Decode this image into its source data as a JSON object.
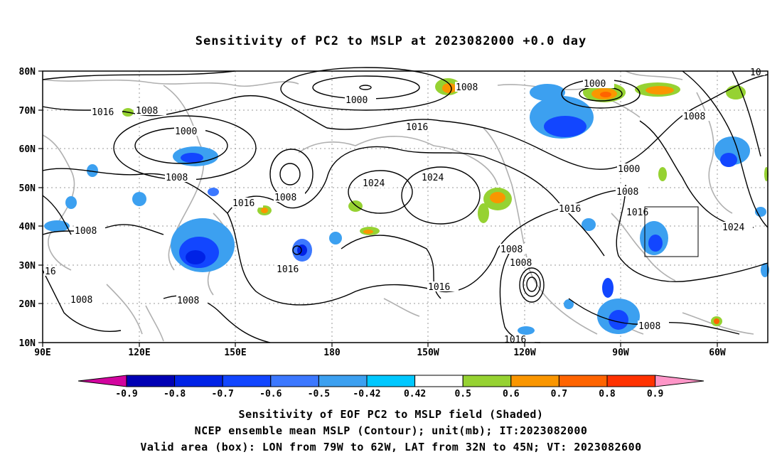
{
  "title": "Sensitivity of PC2 to MSLP at 2023082000 +0.0 day",
  "lat_ticks": [
    "80N",
    "70N",
    "60N",
    "50N",
    "40N",
    "30N",
    "20N",
    "10N"
  ],
  "lon_ticks": [
    "90E",
    "120E",
    "150E",
    "180",
    "150W",
    "120W",
    "90W",
    "60W"
  ],
  "contour_labels": [
    "1000",
    "1000",
    "1000",
    "1000",
    "1008",
    "1008",
    "1008",
    "1008",
    "1008",
    "1008",
    "1008",
    "1008",
    "1008",
    "1008",
    "1008",
    "1008",
    "1016",
    "1016",
    "1016",
    "1016",
    "1016",
    "1016",
    "1016",
    "1016",
    "1024",
    "1024",
    "1024",
    "16",
    "10"
  ],
  "colorbar": {
    "labels": [
      "-0.9",
      "-0.8",
      "-0.7",
      "-0.6",
      "-0.5",
      "-0.42",
      "0.42",
      "0.5",
      "0.6",
      "0.7",
      "0.8",
      "0.9"
    ],
    "colors": [
      "#0000b4",
      "#0022e6",
      "#1246ff",
      "#3c78ff",
      "#3ca0f0",
      "#00c8ff",
      "#ffffff",
      "#96d232",
      "#fa9600",
      "#ff6400",
      "#ff3200",
      "#ff0000"
    ],
    "low_end": "#d2049e",
    "high_end": "#ff96c8"
  },
  "footer": {
    "line1": "Sensitivity of EOF PC2 to MSLP field (Shaded)",
    "line2": "NCEP ensemble mean MSLP (Contour); unit(mb); IT:2023082000",
    "line3": "Valid area (box): LON from 79W to 62W, LAT from 32N to 45N; VT: 2023082600"
  }
}
